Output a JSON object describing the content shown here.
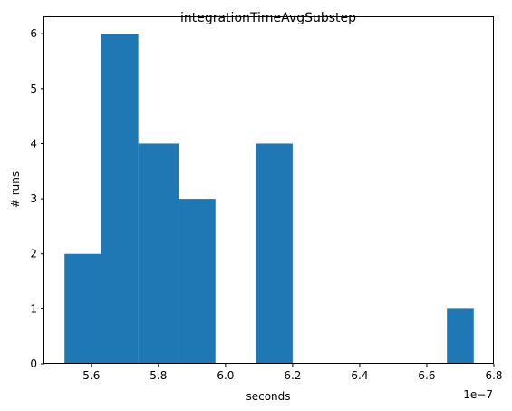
{
  "chart_data": {
    "type": "bar",
    "title": "integrationTimeAvgSubstep",
    "xlabel": "seconds",
    "ylabel": "# runs",
    "x_offset_text": "1e−7",
    "bar_color": "#1f77b4",
    "bins": [
      {
        "x0": 5.52,
        "x1": 5.63,
        "count": 2
      },
      {
        "x0": 5.63,
        "x1": 5.74,
        "count": 6
      },
      {
        "x0": 5.74,
        "x1": 5.86,
        "count": 4
      },
      {
        "x0": 5.86,
        "x1": 5.97,
        "count": 3
      },
      {
        "x0": 5.97,
        "x1": 6.09,
        "count": 0
      },
      {
        "x0": 6.09,
        "x1": 6.2,
        "count": 4
      },
      {
        "x0": 6.2,
        "x1": 6.31,
        "count": 0
      },
      {
        "x0": 6.31,
        "x1": 6.43,
        "count": 0
      },
      {
        "x0": 6.43,
        "x1": 6.54,
        "count": 0
      },
      {
        "x0": 6.54,
        "x1": 6.66,
        "count": 0
      },
      {
        "x0": 6.66,
        "x1": 6.74,
        "count": 1
      }
    ],
    "xlim": [
      5.46,
      6.8
    ],
    "ylim": [
      0,
      6.3
    ],
    "x_ticks": [
      5.6,
      5.8,
      6.0,
      6.2,
      6.4,
      6.6,
      6.8
    ],
    "x_tick_labels": [
      "5.6",
      "5.8",
      "6.0",
      "6.2",
      "6.4",
      "6.6",
      "6.8"
    ],
    "y_ticks": [
      0,
      1,
      2,
      3,
      4,
      5,
      6
    ],
    "y_tick_labels": [
      "0",
      "1",
      "2",
      "3",
      "4",
      "5",
      "6"
    ],
    "grid": false,
    "legend": "none"
  }
}
